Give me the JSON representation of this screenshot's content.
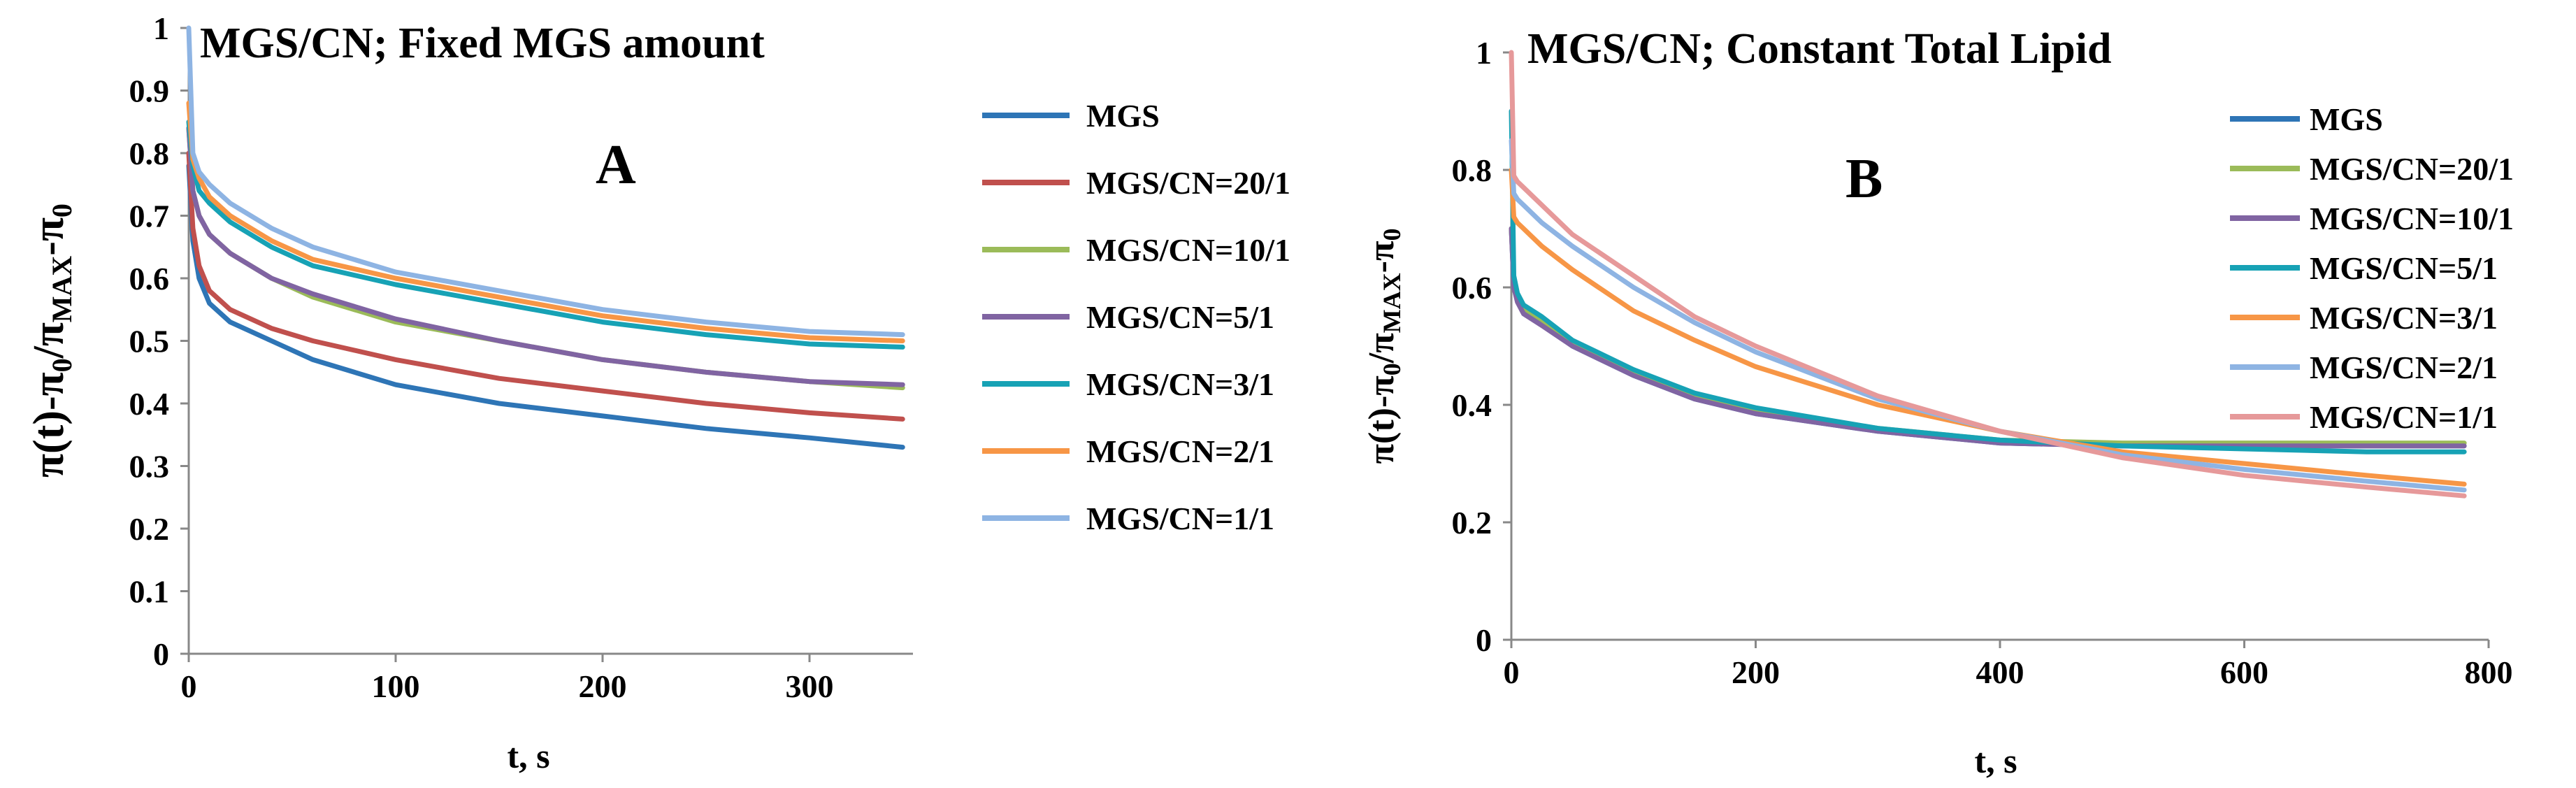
{
  "chart_data": [
    {
      "type": "line",
      "panel_letter": "A",
      "title": "MGS/CN; Fixed MGS amount",
      "xlabel": "t, s",
      "ylabel": "π(t)-π0/πMAX-π0",
      "ylabel_parts": {
        "main": "π(t)-π",
        "sub0": "0",
        "slash": "/π",
        "sub1": "MAX",
        "mid": "-π",
        "sub2": "0"
      },
      "xlim": [
        0,
        350
      ],
      "ylim": [
        0,
        1
      ],
      "xticks": [
        0,
        100,
        200,
        300
      ],
      "xtick_labels": [
        "0",
        "100",
        "200",
        "300"
      ],
      "yticks": [
        0,
        0.1,
        0.2,
        0.3,
        0.4,
        0.5,
        0.6,
        0.7,
        0.8,
        0.9,
        1
      ],
      "ytick_labels": [
        "0",
        "0.1",
        "0.2",
        "0.3",
        "0.4",
        "0.5",
        "0.6",
        "0.7",
        "0.8",
        "0.9",
        "1"
      ],
      "grid": false,
      "legend_position": "right",
      "series": [
        {
          "name": "MGS",
          "color": "#2E75B6",
          "x": [
            0,
            2,
            5,
            10,
            20,
            40,
            60,
            100,
            150,
            200,
            250,
            300,
            345
          ],
          "y": [
            0.78,
            0.66,
            0.6,
            0.56,
            0.53,
            0.5,
            0.47,
            0.43,
            0.4,
            0.38,
            0.36,
            0.345,
            0.33
          ]
        },
        {
          "name": "MGS/CN=20/1",
          "color": "#C0504D",
          "x": [
            0,
            2,
            5,
            10,
            20,
            40,
            60,
            100,
            150,
            200,
            250,
            300,
            345
          ],
          "y": [
            0.8,
            0.68,
            0.62,
            0.58,
            0.55,
            0.52,
            0.5,
            0.47,
            0.44,
            0.42,
            0.4,
            0.385,
            0.375
          ]
        },
        {
          "name": "MGS/CN=10/1",
          "color": "#9BBB59",
          "x": [
            0,
            2,
            5,
            10,
            20,
            40,
            60,
            100,
            150,
            200,
            250,
            300,
            345
          ],
          "y": [
            0.84,
            0.74,
            0.7,
            0.67,
            0.64,
            0.6,
            0.57,
            0.53,
            0.5,
            0.47,
            0.45,
            0.435,
            0.425
          ]
        },
        {
          "name": "MGS/CN=5/1",
          "color": "#8064A2",
          "x": [
            0,
            2,
            5,
            10,
            20,
            40,
            60,
            100,
            150,
            200,
            250,
            300,
            345
          ],
          "y": [
            0.84,
            0.74,
            0.7,
            0.67,
            0.64,
            0.6,
            0.575,
            0.535,
            0.5,
            0.47,
            0.45,
            0.435,
            0.43
          ]
        },
        {
          "name": "MGS/CN=3/1",
          "color": "#17A2B5",
          "x": [
            0,
            2,
            5,
            10,
            20,
            40,
            60,
            100,
            150,
            200,
            250,
            300,
            345
          ],
          "y": [
            0.85,
            0.78,
            0.74,
            0.72,
            0.69,
            0.65,
            0.62,
            0.59,
            0.56,
            0.53,
            0.51,
            0.495,
            0.49
          ]
        },
        {
          "name": "MGS/CN=2/1",
          "color": "#F79646",
          "x": [
            0,
            2,
            5,
            10,
            20,
            40,
            60,
            100,
            150,
            200,
            250,
            300,
            345
          ],
          "y": [
            0.88,
            0.79,
            0.76,
            0.73,
            0.7,
            0.66,
            0.63,
            0.6,
            0.57,
            0.54,
            0.52,
            0.505,
            0.5
          ]
        },
        {
          "name": "MGS/CN=1/1",
          "color": "#8EB4E3",
          "x": [
            0,
            2,
            5,
            10,
            20,
            40,
            60,
            100,
            150,
            200,
            250,
            300,
            345
          ],
          "y": [
            1.0,
            0.8,
            0.77,
            0.75,
            0.72,
            0.68,
            0.65,
            0.61,
            0.58,
            0.55,
            0.53,
            0.515,
            0.51
          ]
        }
      ]
    },
    {
      "type": "line",
      "panel_letter": "B",
      "title": "MGS/CN; Constant Total Lipid",
      "xlabel": "t, s",
      "ylabel": "π(t)-π0/πMAX-π0",
      "ylabel_parts": {
        "main": "π(t)-π",
        "sub0": "0",
        "slash": "/π",
        "sub1": "MAX",
        "mid": "-π",
        "sub2": "0"
      },
      "xlim": [
        0,
        800
      ],
      "ylim": [
        0,
        1
      ],
      "xticks": [
        0,
        200,
        400,
        600,
        800
      ],
      "xtick_labels": [
        "0",
        "200",
        "400",
        "600",
        "800"
      ],
      "yticks": [
        0,
        0.2,
        0.4,
        0.6,
        0.8,
        1
      ],
      "ytick_labels": [
        "0",
        "0.2",
        "0.4",
        "0.6",
        "0.8",
        "1"
      ],
      "grid": false,
      "legend_position": "top-right",
      "series": [
        {
          "name": "MGS",
          "color": "#2E75B6",
          "x": [
            0,
            2,
            5,
            10,
            25,
            50,
            100,
            150,
            200,
            300,
            400,
            500,
            600,
            700,
            780
          ],
          "y": [
            0.7,
            0.6,
            0.58,
            0.56,
            0.54,
            0.5,
            0.45,
            0.41,
            0.385,
            0.355,
            0.335,
            0.33,
            0.33,
            0.33,
            0.33
          ]
        },
        {
          "name": "MGS/CN=20/1",
          "color": "#9BBB59",
          "x": [
            0,
            2,
            5,
            10,
            25,
            50,
            100,
            150,
            200,
            300,
            400,
            500,
            600,
            700,
            780
          ],
          "y": [
            0.7,
            0.61,
            0.585,
            0.565,
            0.545,
            0.505,
            0.455,
            0.415,
            0.39,
            0.36,
            0.34,
            0.335,
            0.335,
            0.335,
            0.335
          ]
        },
        {
          "name": "MGS/CN=10/1",
          "color": "#8064A2",
          "x": [
            0,
            2,
            5,
            10,
            25,
            50,
            100,
            150,
            200,
            300,
            400,
            500,
            600,
            700,
            780
          ],
          "y": [
            0.7,
            0.6,
            0.575,
            0.555,
            0.535,
            0.5,
            0.45,
            0.41,
            0.385,
            0.355,
            0.335,
            0.33,
            0.33,
            0.33,
            0.33
          ]
        },
        {
          "name": "MGS/CN=5/1",
          "color": "#17A2B5",
          "x": [
            0,
            2,
            5,
            10,
            25,
            50,
            100,
            150,
            200,
            300,
            400,
            500,
            600,
            700,
            780
          ],
          "y": [
            0.9,
            0.62,
            0.59,
            0.57,
            0.55,
            0.51,
            0.46,
            0.42,
            0.395,
            0.36,
            0.34,
            0.33,
            0.325,
            0.32,
            0.32
          ]
        },
        {
          "name": "MGS/CN=3/1",
          "color": "#F79646",
          "x": [
            0,
            2,
            5,
            10,
            25,
            50,
            100,
            150,
            200,
            300,
            400,
            500,
            600,
            700,
            780
          ],
          "y": [
            0.8,
            0.72,
            0.71,
            0.7,
            0.67,
            0.63,
            0.56,
            0.51,
            0.465,
            0.4,
            0.355,
            0.32,
            0.3,
            0.28,
            0.265
          ]
        },
        {
          "name": "MGS/CN=2/1",
          "color": "#8EB4E3",
          "x": [
            0,
            2,
            5,
            10,
            25,
            50,
            100,
            150,
            200,
            300,
            400,
            500,
            600,
            700,
            780
          ],
          "y": [
            0.85,
            0.76,
            0.75,
            0.74,
            0.71,
            0.67,
            0.6,
            0.54,
            0.49,
            0.41,
            0.355,
            0.315,
            0.29,
            0.27,
            0.255
          ]
        },
        {
          "name": "MGS/CN=1/1",
          "color": "#E6999A",
          "x": [
            0,
            2,
            5,
            10,
            25,
            50,
            100,
            150,
            200,
            300,
            400,
            500,
            600,
            700,
            780
          ],
          "y": [
            1.0,
            0.79,
            0.78,
            0.77,
            0.74,
            0.69,
            0.62,
            0.55,
            0.5,
            0.415,
            0.355,
            0.31,
            0.28,
            0.26,
            0.245
          ]
        }
      ]
    }
  ]
}
